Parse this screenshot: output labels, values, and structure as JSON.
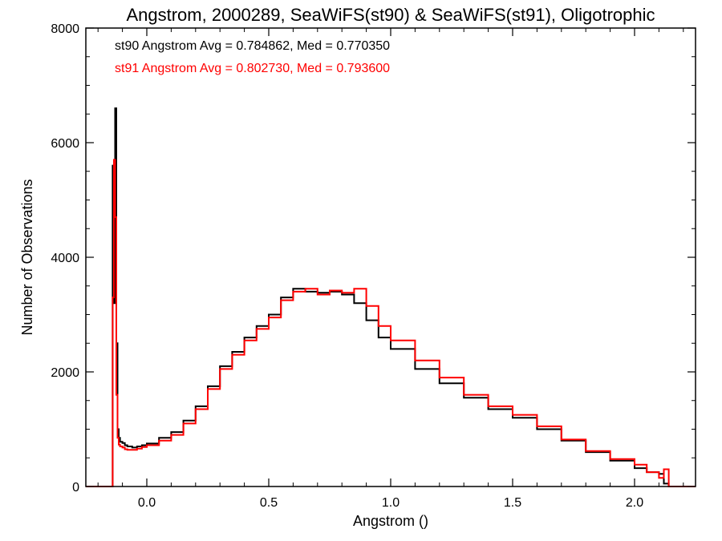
{
  "chart_data": {
    "type": "line",
    "step": true,
    "title": "Angstrom, 2000289, SeaWiFS(st90) & SeaWiFS(st91), Oligotrophic",
    "xlabel": "Angstrom ()",
    "ylabel": "Number of Observations",
    "xlim": [
      -0.25,
      2.25
    ],
    "ylim": [
      0,
      8000
    ],
    "xticks": [
      0.0,
      0.5,
      1.0,
      1.5,
      2.0
    ],
    "xtick_labels": [
      "0.0",
      "0.5",
      "1.0",
      "1.5",
      "2.0"
    ],
    "yticks": [
      0,
      2000,
      4000,
      6000,
      8000
    ],
    "ytick_labels": [
      "0",
      "2000",
      "4000",
      "6000",
      "8000"
    ],
    "grid": false,
    "stats": [
      {
        "text": "st90 Angstrom Avg = 0.784862, Med = 0.770350",
        "color": "#000000"
      },
      {
        "text": "st91 Angstrom Avg = 0.802730, Med = 0.793600",
        "color": "#ff0000"
      }
    ],
    "series": [
      {
        "color": "#000000",
        "x": [
          -0.25,
          -0.15,
          -0.14,
          -0.135,
          -0.13,
          -0.125,
          -0.12,
          -0.115,
          -0.11,
          -0.1,
          -0.09,
          -0.08,
          -0.06,
          -0.04,
          -0.02,
          0.0,
          0.05,
          0.1,
          0.15,
          0.2,
          0.25,
          0.3,
          0.35,
          0.4,
          0.45,
          0.5,
          0.55,
          0.6,
          0.65,
          0.7,
          0.75,
          0.8,
          0.85,
          0.9,
          0.95,
          1.0,
          1.1,
          1.2,
          1.3,
          1.4,
          1.5,
          1.6,
          1.7,
          1.8,
          1.9,
          2.0,
          2.05,
          2.1,
          2.12,
          2.14,
          2.25
        ],
        "y": [
          0,
          0,
          5600,
          3200,
          6600,
          2500,
          1000,
          850,
          780,
          760,
          720,
          700,
          680,
          700,
          720,
          750,
          850,
          950,
          1150,
          1400,
          1750,
          2100,
          2350,
          2600,
          2800,
          3000,
          3300,
          3450,
          3400,
          3380,
          3400,
          3350,
          3200,
          2900,
          2600,
          2400,
          2050,
          1800,
          1550,
          1350,
          1200,
          1000,
          800,
          600,
          450,
          320,
          250,
          220,
          50,
          0,
          0
        ]
      },
      {
        "color": "#ff0000",
        "x": [
          -0.25,
          -0.15,
          -0.14,
          -0.135,
          -0.13,
          -0.125,
          -0.12,
          -0.115,
          -0.11,
          -0.1,
          -0.09,
          -0.08,
          -0.06,
          -0.04,
          -0.02,
          0.0,
          0.05,
          0.1,
          0.15,
          0.2,
          0.25,
          0.3,
          0.35,
          0.4,
          0.45,
          0.5,
          0.55,
          0.6,
          0.65,
          0.7,
          0.75,
          0.8,
          0.85,
          0.9,
          0.95,
          1.0,
          1.1,
          1.2,
          1.3,
          1.4,
          1.5,
          1.6,
          1.7,
          1.8,
          1.9,
          2.0,
          2.05,
          2.1,
          2.12,
          2.14,
          2.25
        ],
        "y": [
          0,
          0,
          3300,
          5700,
          4700,
          1600,
          850,
          730,
          700,
          680,
          650,
          640,
          640,
          660,
          690,
          720,
          800,
          900,
          1100,
          1350,
          1700,
          2050,
          2300,
          2550,
          2750,
          2950,
          3250,
          3400,
          3450,
          3350,
          3420,
          3380,
          3450,
          3150,
          2800,
          2550,
          2200,
          1900,
          1600,
          1400,
          1250,
          1050,
          820,
          620,
          480,
          380,
          250,
          150,
          300,
          0,
          0
        ]
      }
    ]
  }
}
